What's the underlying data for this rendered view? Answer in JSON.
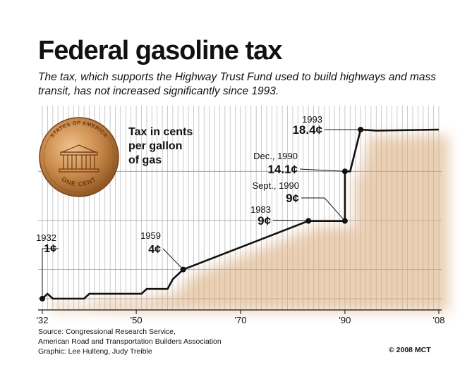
{
  "header": {
    "title": "Federal gasoline tax",
    "subtitle": "The tax, which supports the Highway Trust Fund used to build highways and mass transit, has not increased significantly since 1993."
  },
  "legend_lines": [
    "Tax in cents",
    "per gallon",
    "of gas"
  ],
  "chart_data": {
    "type": "line",
    "x_ticks": [
      {
        "value": 1932,
        "label": "'32"
      },
      {
        "value": 1950,
        "label": "'50"
      },
      {
        "value": 1970,
        "label": "'70"
      },
      {
        "value": 1990,
        "label": "'90"
      },
      {
        "value": 2008,
        "label": "'08"
      }
    ],
    "xlim": [
      1932,
      2008
    ],
    "ylim": [
      0,
      18.4
    ],
    "grid": true,
    "series": [
      {
        "x": [
          1932,
          1933,
          1934,
          1940,
          1941,
          1951,
          1952,
          1956,
          1957,
          1959,
          1983,
          1983,
          1990,
          1990,
          1991,
          1993,
          1996,
          2008
        ],
        "y": [
          1,
          1.5,
          1,
          1,
          1.5,
          1.5,
          2,
          2,
          3,
          4,
          9,
          9,
          9,
          14.1,
          14.1,
          18.4,
          18.3,
          18.4
        ]
      }
    ],
    "annotations": [
      {
        "year_label": "1932",
        "value_label": "1¢",
        "x": 1932,
        "y": 1
      },
      {
        "year_label": "1959",
        "value_label": "4¢",
        "x": 1959,
        "y": 4
      },
      {
        "year_label": "1983",
        "value_label": "9¢",
        "x": 1983,
        "y": 9
      },
      {
        "year_label": "Sept., 1990",
        "value_label": "9¢",
        "x": 1990,
        "y": 9
      },
      {
        "year_label": "Dec., 1990",
        "value_label": "14.1¢",
        "x": 1990,
        "y": 14.1
      },
      {
        "year_label": "1993",
        "value_label": "18.4¢",
        "x": 1993,
        "y": 18.4
      }
    ],
    "colors": {
      "line": "#111111",
      "grid": "#bdbdbd",
      "glow": "#d9a877",
      "penny": "#c98a4b"
    }
  },
  "penny": {
    "top_text": "STATES OF AMERICA",
    "bottom_text": "ONE CENT"
  },
  "footer": {
    "source_lines": [
      "Source: Congressional Research Service,",
      "American Road and Transportation Builders Association",
      "Graphic: Lee Hulteng, Judy Treible"
    ],
    "credit": "© 2008 MCT"
  }
}
